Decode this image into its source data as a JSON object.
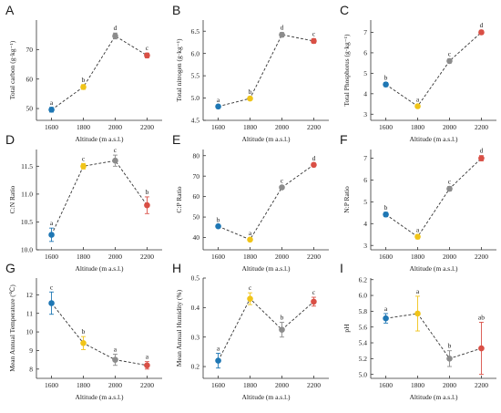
{
  "xlabel": "Altitude (m a.s.l.)",
  "x_ticks": [
    1600,
    1800,
    2000,
    2200
  ],
  "point_colors": [
    "#1f77b4",
    "#f0c419",
    "#8c8c8c",
    "#d94f45"
  ],
  "chart_data": [
    {
      "type": "line",
      "letter": "A",
      "ylabel": "Total carbon (g·kg⁻¹)",
      "x": [
        1600,
        1800,
        2000,
        2200
      ],
      "y": [
        49.6,
        57.3,
        74.6,
        68.0
      ],
      "err": [
        0.8,
        0.8,
        1.0,
        0.8
      ],
      "labels": [
        "a",
        "b",
        "d",
        "c"
      ],
      "ylim": [
        46,
        80
      ],
      "yticks": [
        50,
        60,
        70
      ],
      "tick_decimals": 0
    },
    {
      "type": "line",
      "letter": "B",
      "ylabel": "Total nitrogen (g·kg⁻¹)",
      "x": [
        1600,
        1800,
        2000,
        2200
      ],
      "y": [
        4.81,
        4.99,
        6.42,
        6.28
      ],
      "err": [
        0.04,
        0.04,
        0.05,
        0.05
      ],
      "labels": [
        "a",
        "b",
        "d",
        "c"
      ],
      "ylim": [
        4.5,
        6.75
      ],
      "yticks": [
        4.5,
        5.0,
        5.5,
        6.0,
        6.5
      ],
      "tick_decimals": 1
    },
    {
      "type": "line",
      "letter": "C",
      "ylabel": "Total Phosphorus (g·kg⁻¹)",
      "x": [
        1600,
        1800,
        2000,
        2200
      ],
      "y": [
        4.45,
        3.39,
        5.6,
        7.0
      ],
      "err": [
        0.1,
        0.08,
        0.1,
        0.1
      ],
      "labels": [
        "b",
        "a",
        "c",
        "d"
      ],
      "ylim": [
        2.7,
        7.6
      ],
      "yticks": [
        3,
        4,
        5,
        6,
        7
      ],
      "tick_decimals": 0
    },
    {
      "type": "line",
      "letter": "D",
      "ylabel": "C:N Ratio",
      "x": [
        1600,
        1800,
        2000,
        2200
      ],
      "y": [
        10.27,
        11.5,
        11.6,
        10.8
      ],
      "err": [
        0.12,
        0.05,
        0.1,
        0.15
      ],
      "labels": [
        "a",
        "c",
        "c",
        "b"
      ],
      "ylim": [
        10.0,
        11.8
      ],
      "yticks": [
        10.0,
        10.5,
        11.0,
        11.5
      ],
      "tick_decimals": 1
    },
    {
      "type": "line",
      "letter": "E",
      "ylabel": "C:P Ratio",
      "x": [
        1600,
        1800,
        2000,
        2200
      ],
      "y": [
        45.5,
        39.0,
        64.5,
        75.5
      ],
      "err": [
        0.8,
        0.8,
        0.8,
        0.9
      ],
      "labels": [
        "b",
        "a",
        "c",
        "d"
      ],
      "ylim": [
        34,
        83
      ],
      "yticks": [
        40,
        50,
        60,
        70,
        80
      ],
      "tick_decimals": 0
    },
    {
      "type": "line",
      "letter": "F",
      "ylabel": "N:P Ratio",
      "x": [
        1600,
        1800,
        2000,
        2200
      ],
      "y": [
        4.42,
        3.4,
        5.6,
        7.0
      ],
      "err": [
        0.1,
        0.1,
        0.1,
        0.12
      ],
      "labels": [
        "b",
        "a",
        "c",
        "d"
      ],
      "ylim": [
        2.8,
        7.4
      ],
      "yticks": [
        3,
        4,
        5,
        6,
        7
      ],
      "tick_decimals": 0
    },
    {
      "type": "line",
      "letter": "G",
      "ylabel": "Mean Annual Temperature (℃)",
      "x": [
        1600,
        1800,
        2000,
        2200
      ],
      "y": [
        11.55,
        9.4,
        8.5,
        8.2
      ],
      "err": [
        0.6,
        0.35,
        0.3,
        0.2
      ],
      "labels": [
        "c",
        "b",
        "a",
        "a"
      ],
      "ylim": [
        7.5,
        12.9
      ],
      "yticks": [
        8,
        9,
        10,
        11,
        12
      ],
      "tick_decimals": 0
    },
    {
      "type": "line",
      "letter": "H",
      "ylabel": "Mean Annual Humidity (%)",
      "x": [
        1600,
        1800,
        2000,
        2200
      ],
      "y": [
        0.22,
        0.43,
        0.325,
        0.42
      ],
      "err": [
        0.025,
        0.02,
        0.025,
        0.015
      ],
      "labels": [
        "a",
        "c",
        "b",
        "c"
      ],
      "ylim": [
        0.16,
        0.5
      ],
      "yticks": [
        0.2,
        0.3,
        0.4,
        0.5
      ],
      "tick_decimals": 1
    },
    {
      "type": "line",
      "letter": "I",
      "ylabel": "pH",
      "x": [
        1600,
        1800,
        2000,
        2200
      ],
      "y": [
        5.71,
        5.77,
        5.2,
        5.33
      ],
      "err": [
        0.06,
        0.22,
        0.1,
        0.33
      ],
      "labels": [
        "a",
        "a",
        "b",
        "ab"
      ],
      "ylim": [
        4.95,
        6.22
      ],
      "yticks": [
        5.0,
        5.2,
        5.4,
        5.6,
        5.8,
        6.0,
        6.2
      ],
      "tick_decimals": 1
    }
  ]
}
